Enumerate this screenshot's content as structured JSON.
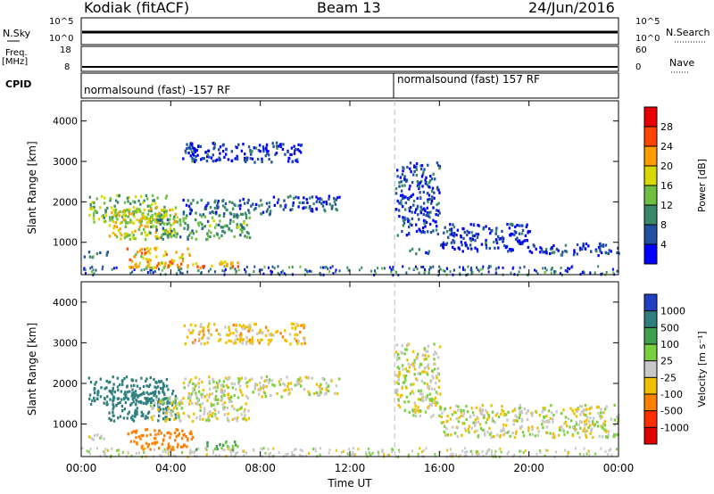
{
  "header": {
    "station": "Kodiak (fitACF)",
    "beam": "Beam 13",
    "date": "24/Jun/2016"
  },
  "summary_panels": {
    "nsky_label": "N.Sky",
    "nsky_ticks": [
      "10^5",
      "10^0"
    ],
    "nsearch_label": "N.Search",
    "nsearch_ticks": [
      "10^5",
      "10^0"
    ],
    "freq_label": "Freq.",
    "freq_unit": "[MHz]",
    "freq_ticks": [
      "18",
      "8"
    ],
    "nave_label": "Nave",
    "nave_ticks": [
      "60",
      "0"
    ],
    "cpid_label": "CPID",
    "cpid_segments": [
      {
        "text": "normalsound (fast) -157 RF",
        "start_h": 0
      },
      {
        "text": "normalsound (fast) 157 RF",
        "start_h": 14
      }
    ]
  },
  "chart_data": [
    {
      "type": "heatmap",
      "title": "",
      "ylabel": "Slant Range [km]",
      "xlabel": "",
      "xlim": [
        0,
        24
      ],
      "ylim": [
        200,
        4500
      ],
      "yticks": [
        "1000",
        "2000",
        "3000",
        "4000"
      ],
      "colorbar": {
        "label": "Power [dB]",
        "ticks": [
          "4",
          "8",
          "12",
          "16",
          "20",
          "24",
          "28"
        ],
        "range": [
          0,
          30
        ],
        "colors": [
          "#0000ff",
          "#2050a0",
          "#3a8a6a",
          "#6fc040",
          "#d8d800",
          "#ff9c00",
          "#ff4400",
          "#e80000"
        ]
      },
      "regions": [
        {
          "t": [
            0.3,
            3.8
          ],
          "r": [
            1500,
            2200
          ],
          "level": 14
        },
        {
          "t": [
            1.2,
            4.2
          ],
          "r": [
            1100,
            1900
          ],
          "level": 18
        },
        {
          "t": [
            3.0,
            7.5
          ],
          "r": [
            1100,
            1700
          ],
          "level": 12
        },
        {
          "t": [
            4.5,
            8.5
          ],
          "r": [
            1700,
            2100
          ],
          "level": 7
        },
        {
          "t": [
            8.5,
            11.5
          ],
          "r": [
            1800,
            2200
          ],
          "level": 6
        },
        {
          "t": [
            2.0,
            5.0
          ],
          "r": [
            400,
            900
          ],
          "level": 20
        },
        {
          "t": [
            5.0,
            7.0
          ],
          "r": [
            400,
            600
          ],
          "level": 22
        },
        {
          "t": [
            4.5,
            10.0
          ],
          "r": [
            3000,
            3500
          ],
          "level": 4
        },
        {
          "t": [
            0.0,
            1.2
          ],
          "r": [
            650,
            800
          ],
          "level": 9
        },
        {
          "t": [
            14.0,
            16.0
          ],
          "r": [
            1200,
            3000
          ],
          "level": 5
        },
        {
          "t": [
            14.5,
            15.5
          ],
          "r": [
            750,
            900
          ],
          "level": 8
        },
        {
          "t": [
            16.0,
            20.0
          ],
          "r": [
            800,
            1500
          ],
          "level": 4
        },
        {
          "t": [
            20.0,
            24.0
          ],
          "r": [
            700,
            1000
          ],
          "level": 4
        }
      ]
    },
    {
      "type": "heatmap",
      "title": "",
      "ylabel": "Slant Range [km]",
      "xlabel": "Time UT",
      "xlim": [
        0,
        24
      ],
      "ylim": [
        200,
        4500
      ],
      "xticks": [
        "00:00",
        "04:00",
        "08:00",
        "12:00",
        "16:00",
        "20:00",
        "00:00"
      ],
      "yticks": [
        "1000",
        "2000",
        "3000",
        "4000"
      ],
      "colorbar": {
        "label": "Velocity [m s⁻¹]",
        "ticks": [
          "1000",
          "500",
          "100",
          "25",
          "-25",
          "-100",
          "-500",
          "-1000"
        ],
        "colors": [
          "#2040c0",
          "#2f7f7f",
          "#3fa050",
          "#78d040",
          "#c8c8c8",
          "#f0c000",
          "#ff8000",
          "#ff3000",
          "#e00000"
        ]
      },
      "regions": [
        {
          "t": [
            0.3,
            3.8
          ],
          "r": [
            1500,
            2200
          ],
          "vel": 300
        },
        {
          "t": [
            1.2,
            4.2
          ],
          "r": [
            1100,
            1900
          ],
          "vel": 300
        },
        {
          "t": [
            3.0,
            7.5
          ],
          "r": [
            1100,
            1700
          ],
          "vel": 0
        },
        {
          "t": [
            4.5,
            11.5
          ],
          "r": [
            1700,
            2200
          ],
          "vel": 0
        },
        {
          "t": [
            2.0,
            5.0
          ],
          "r": [
            400,
            900
          ],
          "vel": -300
        },
        {
          "t": [
            5.0,
            7.0
          ],
          "r": [
            400,
            600
          ],
          "vel": 60
        },
        {
          "t": [
            4.5,
            10.0
          ],
          "r": [
            3000,
            3500
          ],
          "vel": -60
        },
        {
          "t": [
            0.0,
            1.2
          ],
          "r": [
            650,
            800
          ],
          "vel": 0
        },
        {
          "t": [
            14.0,
            16.0
          ],
          "r": [
            1200,
            3000
          ],
          "vel": 0
        },
        {
          "t": [
            16.0,
            24.0
          ],
          "r": [
            700,
            1500
          ],
          "vel": 0
        }
      ]
    }
  ]
}
